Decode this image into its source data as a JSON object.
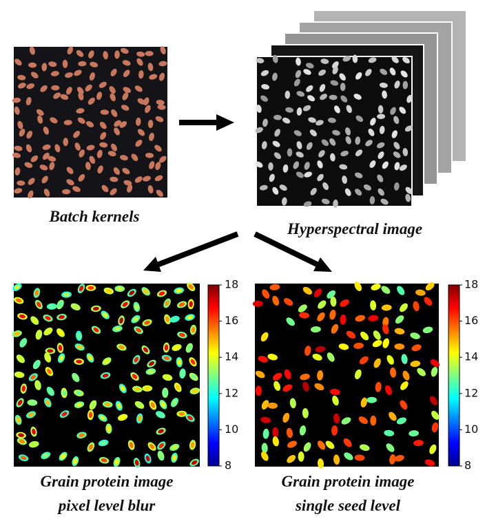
{
  "panels": [
    {
      "label": "Batch kernels"
    },
    {
      "label": "Hyperspectral image"
    },
    {
      "label_lines": [
        "Grain protein image",
        "pixel level blur"
      ]
    },
    {
      "label_lines": [
        "Grain protein image",
        "single seed level"
      ]
    }
  ],
  "colorbars": [
    {
      "range": [
        8,
        18
      ],
      "ticks": [
        8,
        10,
        12,
        14,
        16,
        18
      ]
    },
    {
      "range": [
        8,
        18
      ],
      "ticks": [
        8,
        10,
        12,
        14,
        16,
        18
      ]
    }
  ]
}
